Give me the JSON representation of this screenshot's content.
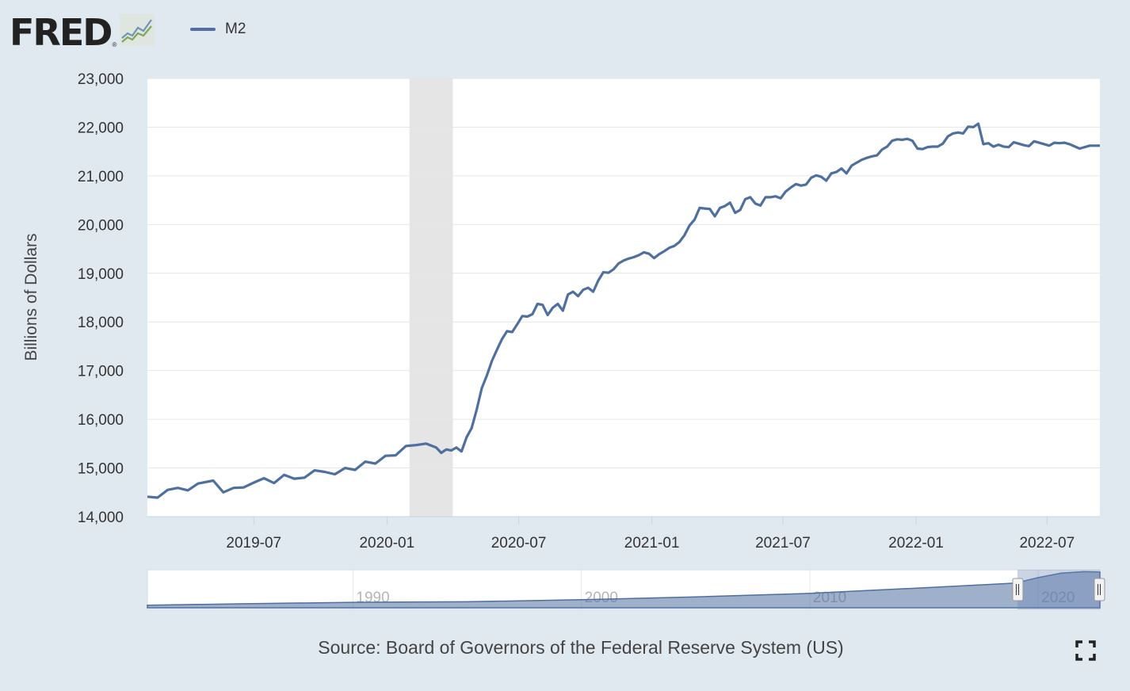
{
  "logo": {
    "text": "FRED",
    "registered": "®"
  },
  "legend": {
    "label": "M2",
    "color": "#4e6f9f"
  },
  "source": "Source: Board of Governors of the Federal Reserve System (US)",
  "icons": {
    "logo_graph": "fred-chart-icon",
    "fullscreen": "fullscreen-icon"
  },
  "chart_data": {
    "type": "line",
    "title": "",
    "xlabel": "",
    "ylabel": "Billions of Dollars",
    "xlim": [
      "2019-02-04",
      "2022-09-12"
    ],
    "ylim": [
      14000,
      23000
    ],
    "yticks": [
      "14,000",
      "15,000",
      "16,000",
      "17,000",
      "18,000",
      "19,000",
      "20,000",
      "21,000",
      "22,000",
      "23,000"
    ],
    "xticks": [
      {
        "label": "2019-07",
        "date": "2019-07-01"
      },
      {
        "label": "2020-01",
        "date": "2020-01-01"
      },
      {
        "label": "2020-07",
        "date": "2020-07-01"
      },
      {
        "label": "2021-01",
        "date": "2021-01-01"
      },
      {
        "label": "2021-07",
        "date": "2021-07-01"
      },
      {
        "label": "2022-01",
        "date": "2022-01-01"
      },
      {
        "label": "2022-07",
        "date": "2022-07-01"
      }
    ],
    "recession": {
      "start": "2020-02-01",
      "end": "2020-04-01",
      "color": "#e5e5e5"
    },
    "grid": true,
    "series": [
      {
        "name": "M2",
        "color": "#4e6f9f",
        "points": [
          [
            "2019-02-04",
            14410
          ],
          [
            "2019-02-18",
            14390
          ],
          [
            "2019-03-04",
            14550
          ],
          [
            "2019-03-18",
            14590
          ],
          [
            "2019-04-01",
            14540
          ],
          [
            "2019-04-15",
            14680
          ],
          [
            "2019-05-06",
            14740
          ],
          [
            "2019-05-20",
            14500
          ],
          [
            "2019-06-03",
            14590
          ],
          [
            "2019-06-17",
            14600
          ],
          [
            "2019-07-01",
            14700
          ],
          [
            "2019-07-15",
            14790
          ],
          [
            "2019-07-29",
            14690
          ],
          [
            "2019-08-12",
            14860
          ],
          [
            "2019-08-26",
            14780
          ],
          [
            "2019-09-09",
            14800
          ],
          [
            "2019-09-23",
            14950
          ],
          [
            "2019-10-07",
            14920
          ],
          [
            "2019-10-21",
            14870
          ],
          [
            "2019-11-04",
            15000
          ],
          [
            "2019-11-18",
            14960
          ],
          [
            "2019-12-02",
            15130
          ],
          [
            "2019-12-16",
            15090
          ],
          [
            "2019-12-30",
            15250
          ],
          [
            "2020-01-13",
            15260
          ],
          [
            "2020-01-27",
            15450
          ],
          [
            "2020-02-10",
            15470
          ],
          [
            "2020-02-24",
            15500
          ],
          [
            "2020-03-09",
            15420
          ],
          [
            "2020-03-16",
            15310
          ],
          [
            "2020-03-23",
            15380
          ],
          [
            "2020-03-30",
            15360
          ],
          [
            "2020-04-06",
            15420
          ],
          [
            "2020-04-13",
            15340
          ],
          [
            "2020-04-20",
            15630
          ],
          [
            "2020-04-27",
            15820
          ],
          [
            "2020-05-04",
            16200
          ],
          [
            "2020-05-11",
            16640
          ],
          [
            "2020-05-18",
            16900
          ],
          [
            "2020-05-25",
            17200
          ],
          [
            "2020-06-01",
            17430
          ],
          [
            "2020-06-08",
            17650
          ],
          [
            "2020-06-15",
            17810
          ],
          [
            "2020-06-22",
            17790
          ],
          [
            "2020-06-29",
            17950
          ],
          [
            "2020-07-06",
            18120
          ],
          [
            "2020-07-13",
            18110
          ],
          [
            "2020-07-20",
            18160
          ],
          [
            "2020-07-27",
            18370
          ],
          [
            "2020-08-03",
            18350
          ],
          [
            "2020-08-10",
            18140
          ],
          [
            "2020-08-17",
            18290
          ],
          [
            "2020-08-24",
            18370
          ],
          [
            "2020-08-31",
            18230
          ],
          [
            "2020-09-07",
            18560
          ],
          [
            "2020-09-14",
            18620
          ],
          [
            "2020-09-21",
            18530
          ],
          [
            "2020-09-28",
            18660
          ],
          [
            "2020-10-05",
            18700
          ],
          [
            "2020-10-12",
            18620
          ],
          [
            "2020-10-19",
            18850
          ],
          [
            "2020-10-26",
            19020
          ],
          [
            "2020-11-02",
            19010
          ],
          [
            "2020-11-09",
            19080
          ],
          [
            "2020-11-16",
            19200
          ],
          [
            "2020-11-23",
            19260
          ],
          [
            "2020-11-30",
            19300
          ],
          [
            "2020-12-07",
            19330
          ],
          [
            "2020-12-14",
            19370
          ],
          [
            "2020-12-21",
            19430
          ],
          [
            "2020-12-28",
            19400
          ],
          [
            "2021-01-04",
            19310
          ],
          [
            "2021-01-11",
            19390
          ],
          [
            "2021-01-18",
            19450
          ],
          [
            "2021-01-25",
            19520
          ],
          [
            "2021-02-01",
            19560
          ],
          [
            "2021-02-08",
            19640
          ],
          [
            "2021-02-15",
            19780
          ],
          [
            "2021-02-22",
            19980
          ],
          [
            "2021-03-01",
            20100
          ],
          [
            "2021-03-08",
            20340
          ],
          [
            "2021-03-15",
            20330
          ],
          [
            "2021-03-22",
            20320
          ],
          [
            "2021-03-29",
            20170
          ],
          [
            "2021-04-05",
            20340
          ],
          [
            "2021-04-12",
            20380
          ],
          [
            "2021-04-19",
            20450
          ],
          [
            "2021-04-26",
            20240
          ],
          [
            "2021-05-03",
            20300
          ],
          [
            "2021-05-10",
            20520
          ],
          [
            "2021-05-17",
            20560
          ],
          [
            "2021-05-24",
            20430
          ],
          [
            "2021-05-31",
            20390
          ],
          [
            "2021-06-07",
            20560
          ],
          [
            "2021-06-14",
            20560
          ],
          [
            "2021-06-21",
            20580
          ],
          [
            "2021-06-28",
            20540
          ],
          [
            "2021-07-05",
            20680
          ],
          [
            "2021-07-12",
            20760
          ],
          [
            "2021-07-19",
            20830
          ],
          [
            "2021-07-26",
            20800
          ],
          [
            "2021-08-02",
            20820
          ],
          [
            "2021-08-09",
            20960
          ],
          [
            "2021-08-16",
            21010
          ],
          [
            "2021-08-23",
            20980
          ],
          [
            "2021-08-30",
            20900
          ],
          [
            "2021-09-06",
            21050
          ],
          [
            "2021-09-13",
            21080
          ],
          [
            "2021-09-20",
            21150
          ],
          [
            "2021-09-27",
            21050
          ],
          [
            "2021-10-04",
            21210
          ],
          [
            "2021-10-11",
            21270
          ],
          [
            "2021-10-18",
            21330
          ],
          [
            "2021-10-25",
            21370
          ],
          [
            "2021-11-01",
            21400
          ],
          [
            "2021-11-08",
            21420
          ],
          [
            "2021-11-15",
            21540
          ],
          [
            "2021-11-22",
            21600
          ],
          [
            "2021-11-29",
            21720
          ],
          [
            "2021-12-06",
            21750
          ],
          [
            "2021-12-13",
            21740
          ],
          [
            "2021-12-20",
            21760
          ],
          [
            "2021-12-27",
            21720
          ],
          [
            "2022-01-03",
            21560
          ],
          [
            "2022-01-10",
            21550
          ],
          [
            "2022-01-17",
            21590
          ],
          [
            "2022-01-24",
            21600
          ],
          [
            "2022-01-31",
            21600
          ],
          [
            "2022-02-07",
            21660
          ],
          [
            "2022-02-14",
            21810
          ],
          [
            "2022-02-21",
            21870
          ],
          [
            "2022-02-28",
            21890
          ],
          [
            "2022-03-07",
            21870
          ],
          [
            "2022-03-14",
            22010
          ],
          [
            "2022-03-21",
            22000
          ],
          [
            "2022-03-28",
            22070
          ],
          [
            "2022-04-04",
            21650
          ],
          [
            "2022-04-11",
            21670
          ],
          [
            "2022-04-18",
            21600
          ],
          [
            "2022-04-25",
            21640
          ],
          [
            "2022-05-02",
            21600
          ],
          [
            "2022-05-09",
            21590
          ],
          [
            "2022-05-16",
            21690
          ],
          [
            "2022-05-23",
            21660
          ],
          [
            "2022-05-30",
            21630
          ],
          [
            "2022-06-06",
            21610
          ],
          [
            "2022-06-13",
            21710
          ],
          [
            "2022-06-20",
            21680
          ],
          [
            "2022-06-27",
            21650
          ],
          [
            "2022-07-04",
            21620
          ],
          [
            "2022-07-11",
            21680
          ],
          [
            "2022-07-18",
            21670
          ],
          [
            "2022-07-25",
            21680
          ],
          [
            "2022-08-01",
            21650
          ],
          [
            "2022-08-15",
            21560
          ],
          [
            "2022-08-29",
            21620
          ],
          [
            "2022-09-12",
            21620
          ]
        ]
      }
    ],
    "navigator": {
      "xlim": [
        1981,
        2022.7
      ],
      "labels": [
        "1990",
        "2000",
        "2010",
        "2020"
      ],
      "selection": [
        2019.09,
        2022.7
      ],
      "series": [
        [
          1981,
          1600
        ],
        [
          1985,
          2400
        ],
        [
          1990,
          3300
        ],
        [
          1995,
          3650
        ],
        [
          2000,
          4900
        ],
        [
          2005,
          6600
        ],
        [
          2010,
          8700
        ],
        [
          2015,
          12100
        ],
        [
          2019,
          14900
        ],
        [
          2020,
          18200
        ],
        [
          2021,
          20900
        ],
        [
          2022,
          21800
        ],
        [
          2022.7,
          21620
        ]
      ]
    }
  }
}
